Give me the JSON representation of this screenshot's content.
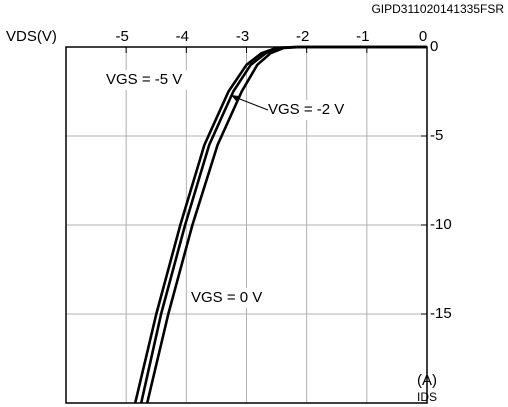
{
  "chart_data": {
    "type": "line",
    "code": "GIPD311020141335FSR",
    "x_label": "VDS(V)",
    "y_label": [
      "(A)",
      "IDS"
    ],
    "xlim": [
      -6,
      0
    ],
    "xticks": [
      -5,
      -4,
      -3,
      -2,
      -1,
      0
    ],
    "ylim": [
      -20,
      0
    ],
    "yticks": [
      0,
      -5,
      -10,
      -15
    ],
    "grid": true,
    "series": [
      {
        "name": "VGS = -5 V",
        "color": "#000000",
        "x": [
          -4.85,
          -4.5,
          -4.1,
          -3.7,
          -3.3,
          -3.0,
          -2.75,
          -2.5,
          -2.2,
          0
        ],
        "values": [
          -20,
          -15,
          -10,
          -5.5,
          -2.5,
          -1,
          -0.35,
          -0.05,
          0,
          0
        ]
      },
      {
        "name": "VGS = -2 V",
        "color": "#000000",
        "x": [
          -4.75,
          -4.42,
          -4.02,
          -3.62,
          -3.22,
          -2.93,
          -2.68,
          -2.45,
          -2.15,
          0
        ],
        "values": [
          -20,
          -15,
          -10,
          -5.5,
          -2.5,
          -1,
          -0.35,
          -0.05,
          0,
          0
        ]
      },
      {
        "name": "VGS = 0 V",
        "color": "#000000",
        "x": [
          -4.65,
          -4.3,
          -3.9,
          -3.48,
          -3.08,
          -2.82,
          -2.6,
          -2.38,
          -2.1,
          0
        ],
        "values": [
          -20,
          -15,
          -10,
          -5.5,
          -2.5,
          -1,
          -0.35,
          -0.05,
          0,
          0
        ]
      }
    ]
  }
}
